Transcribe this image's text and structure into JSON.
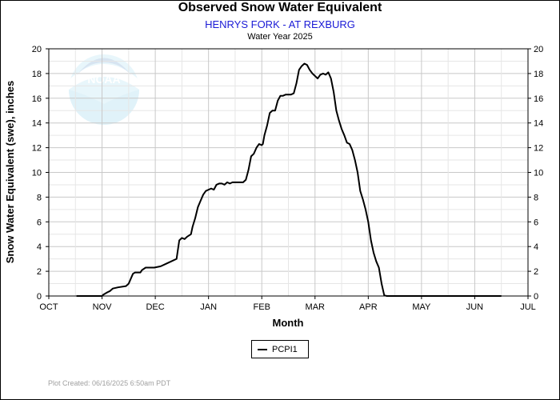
{
  "chart_data": {
    "type": "line",
    "title": "Observed Snow Water Equivalent",
    "subtitle": "HENRYS FORK - AT REXBURG",
    "water_year": "Water Year 2025",
    "xlabel": "Month",
    "ylabel": "Snow Water Equivalent (swe), inches",
    "ylim": [
      0,
      20
    ],
    "y_ticks": [
      0,
      2,
      4,
      6,
      8,
      10,
      12,
      14,
      16,
      18,
      20
    ],
    "x_categories": [
      "OCT",
      "NOV",
      "DEC",
      "JAN",
      "FEB",
      "MAR",
      "APR",
      "MAY",
      "JUN",
      "JUL"
    ],
    "x_axis_unit": "month index (0 = Oct 1)",
    "grid": true,
    "legend_position": "bottom-center",
    "series": [
      {
        "name": "PCPI1",
        "color": "#000000",
        "x": [
          0.52,
          1.0,
          1.02,
          1.1,
          1.15,
          1.2,
          1.3,
          1.45,
          1.5,
          1.58,
          1.62,
          1.72,
          1.75,
          1.82,
          1.9,
          1.98,
          2.1,
          2.2,
          2.3,
          2.4,
          2.45,
          2.5,
          2.55,
          2.6,
          2.67,
          2.7,
          2.75,
          2.8,
          2.85,
          2.9,
          2.95,
          3.0,
          3.05,
          3.1,
          3.15,
          3.2,
          3.25,
          3.3,
          3.35,
          3.4,
          3.45,
          3.5,
          3.55,
          3.6,
          3.65,
          3.7,
          3.75,
          3.8,
          3.85,
          3.9,
          3.95,
          4.0,
          4.02,
          4.05,
          4.1,
          4.15,
          4.2,
          4.25,
          4.3,
          4.35,
          4.4,
          4.45,
          4.5,
          4.55,
          4.6,
          4.65,
          4.7,
          4.75,
          4.8,
          4.85,
          4.9,
          4.95,
          5.0,
          5.05,
          5.1,
          5.15,
          5.2,
          5.25,
          5.3,
          5.35,
          5.4,
          5.45,
          5.5,
          5.55,
          5.6,
          5.65,
          5.7,
          5.75,
          5.8,
          5.85,
          5.9,
          5.95,
          6.0,
          6.05,
          6.1,
          6.15,
          6.2,
          6.25,
          6.3,
          6.35,
          6.4,
          6.45,
          6.5,
          6.55,
          6.6,
          6.65,
          6.7,
          6.75,
          6.8,
          6.85,
          6.9,
          6.95,
          7.0,
          7.05,
          7.1,
          7.2,
          7.4,
          7.6,
          7.8,
          8.0,
          8.3,
          8.5
        ],
        "values": [
          0,
          0,
          0.1,
          0.3,
          0.4,
          0.6,
          0.7,
          0.8,
          1.0,
          1.8,
          1.9,
          1.9,
          2.1,
          2.3,
          2.3,
          2.3,
          2.4,
          2.6,
          2.8,
          3.0,
          4.5,
          4.7,
          4.6,
          4.8,
          5.0,
          5.6,
          6.3,
          7.2,
          7.7,
          8.2,
          8.5,
          8.6,
          8.7,
          8.6,
          9.0,
          9.1,
          9.1,
          9.0,
          9.2,
          9.1,
          9.2,
          9.2,
          9.2,
          9.2,
          9.2,
          9.4,
          10.2,
          11.3,
          11.5,
          12.0,
          12.3,
          12.2,
          12.3,
          13.0,
          13.8,
          14.8,
          15.0,
          15.0,
          15.8,
          16.2,
          16.2,
          16.3,
          16.3,
          16.3,
          16.4,
          17.2,
          18.3,
          18.6,
          18.8,
          18.7,
          18.3,
          18.0,
          17.8,
          17.6,
          17.9,
          18.0,
          17.9,
          18.1,
          17.6,
          16.5,
          15.0,
          14.2,
          13.5,
          13.0,
          12.4,
          12.3,
          11.8,
          11.0,
          10.0,
          8.5,
          7.8,
          7.0,
          6.0,
          4.5,
          3.5,
          2.8,
          2.3,
          1.0,
          0.05,
          0,
          0,
          0,
          0,
          0,
          0,
          0,
          0,
          0,
          0,
          0,
          0,
          0,
          0,
          0,
          0,
          0,
          0,
          0,
          0,
          0,
          0,
          0
        ]
      }
    ]
  },
  "footer": "Plot Created: 06/16/2025 6:50am PDT",
  "watermark": "NOAA"
}
